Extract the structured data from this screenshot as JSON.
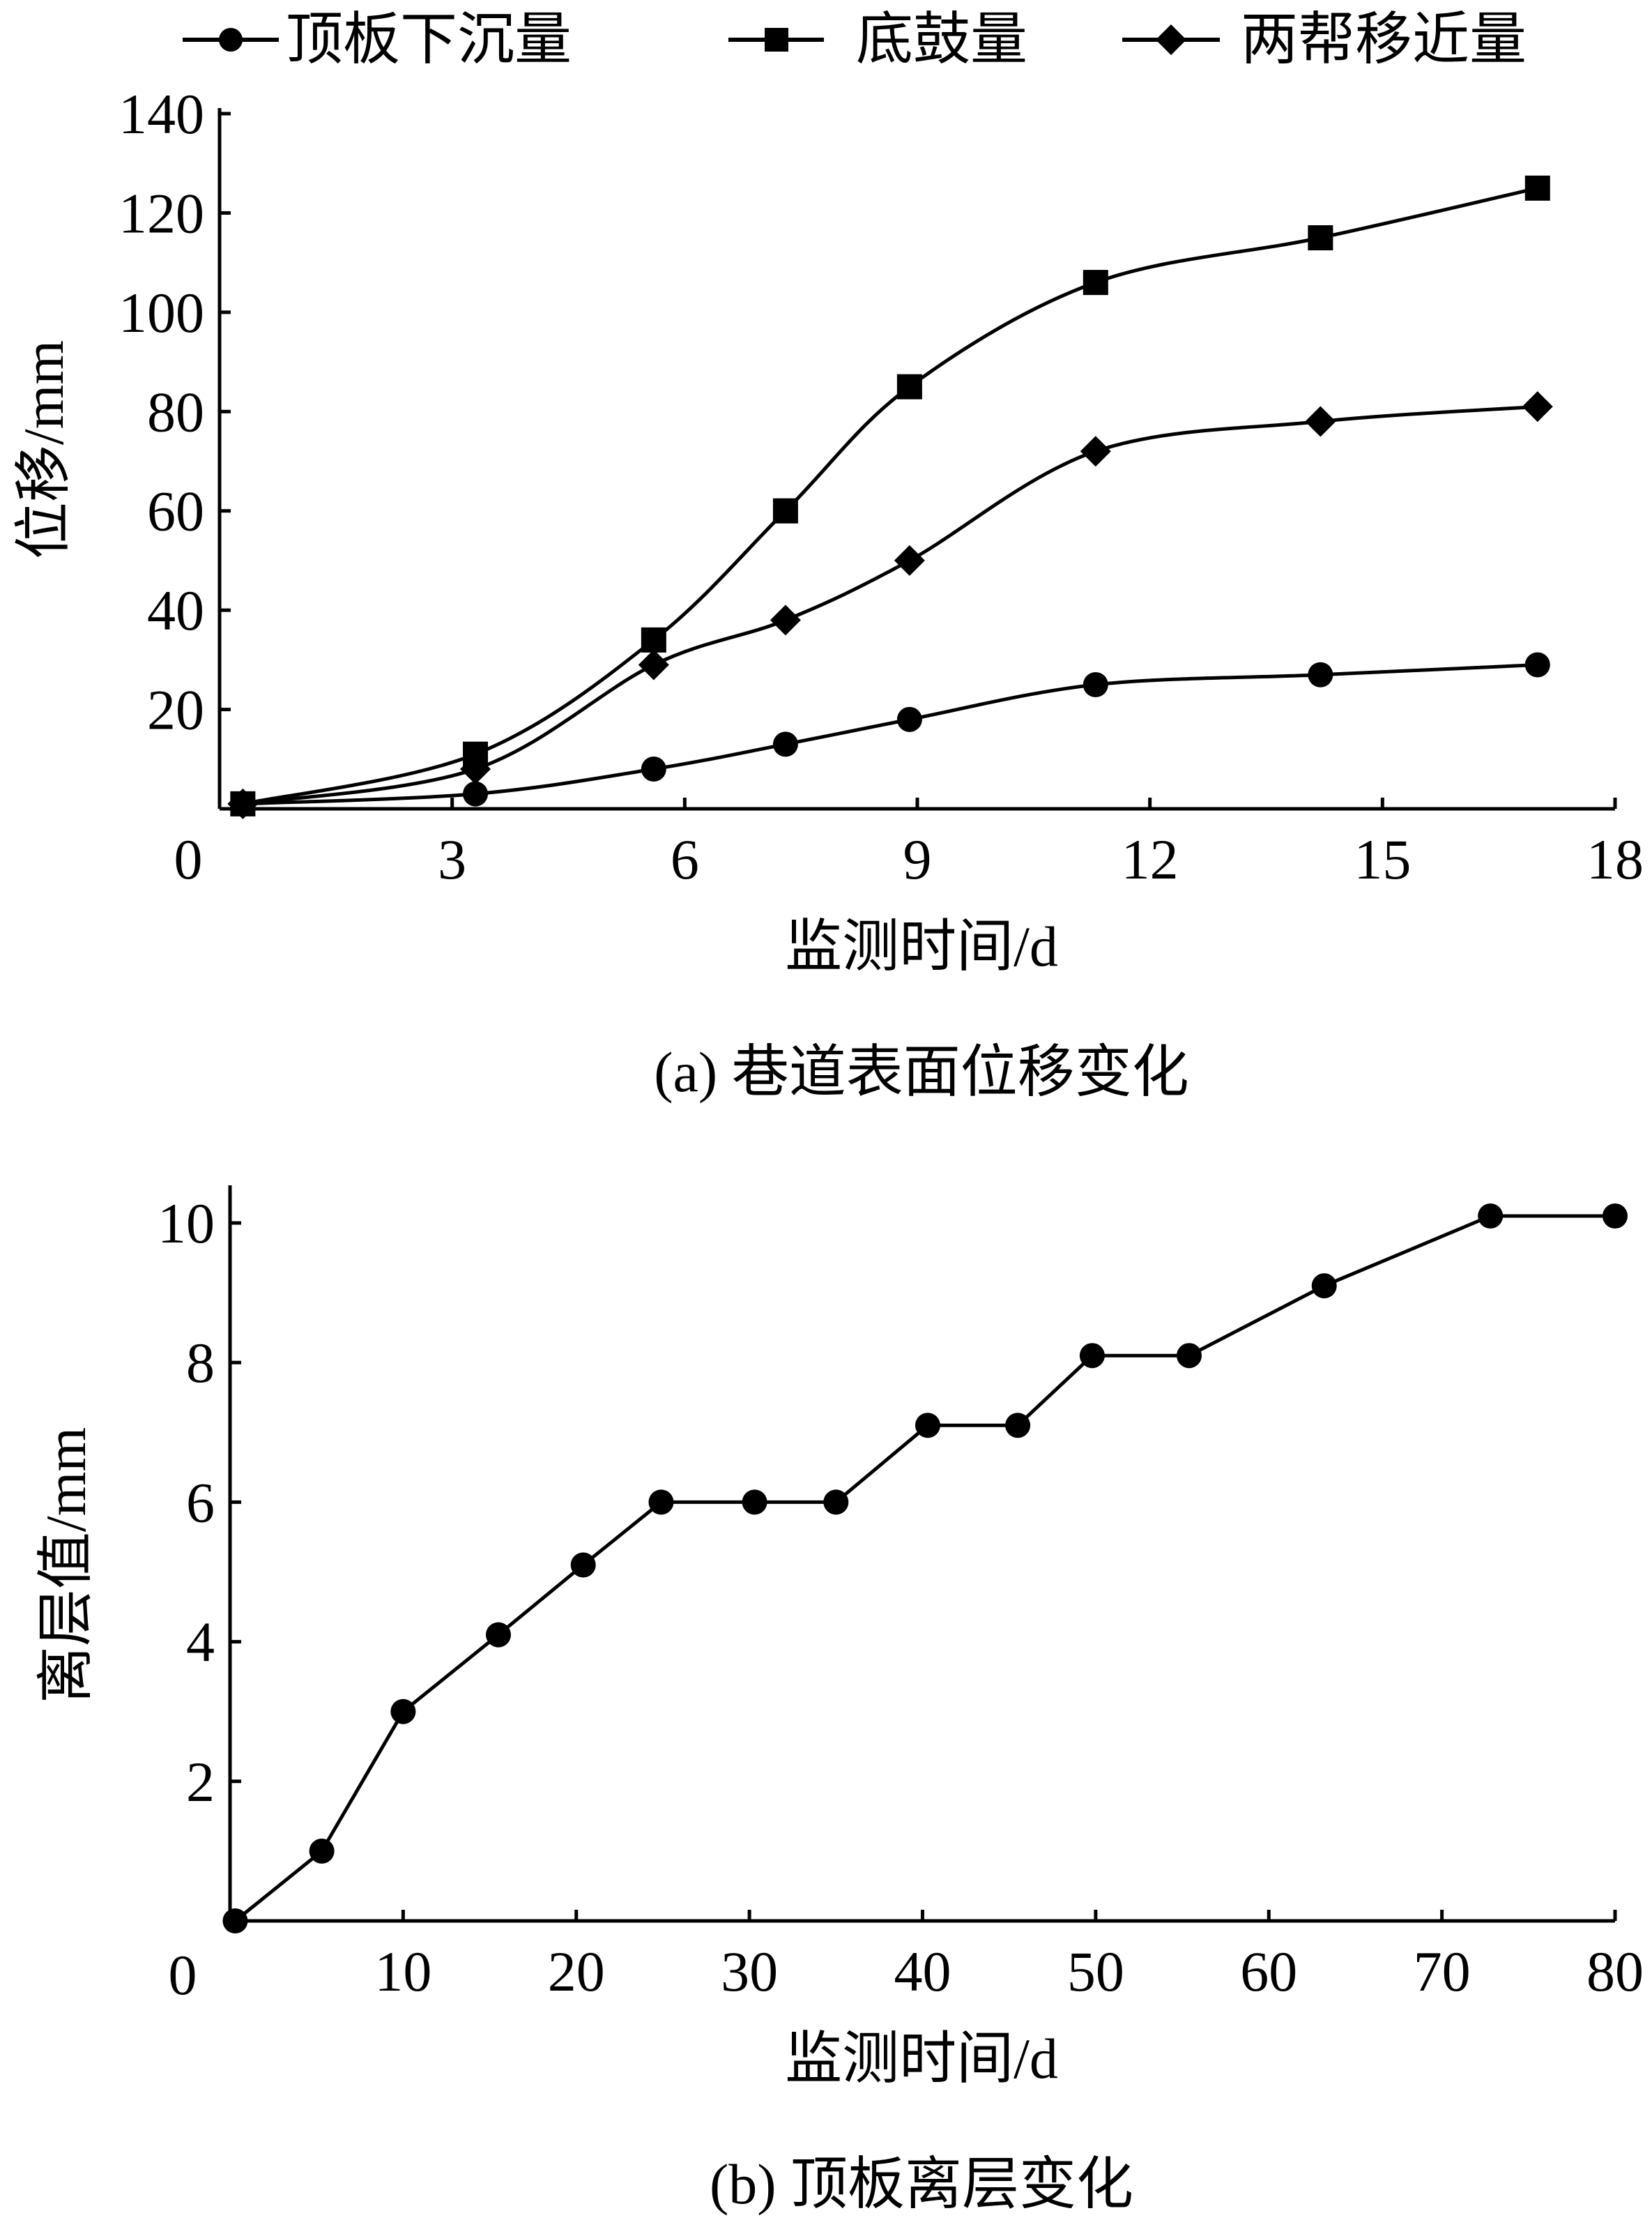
{
  "chart_data": [
    {
      "type": "line",
      "caption": "(a)  巷道表面位移变化",
      "xlabel": "监测时间/d",
      "ylabel": "位移/mm",
      "xlim": [
        0,
        18
      ],
      "ylim": [
        0,
        140
      ],
      "x_ticks": [
        0,
        3,
        6,
        9,
        12,
        15,
        18
      ],
      "y_ticks": [
        20,
        40,
        60,
        80,
        100,
        120,
        140
      ],
      "legend_position": "top",
      "grid": false,
      "series": [
        {
          "name": "顶板下沉量",
          "marker": "circle",
          "x": [
            0.3,
            3.3,
            5.6,
            7.3,
            8.9,
            11.3,
            14.2,
            17.0
          ],
          "y": [
            1,
            3,
            8,
            13,
            18,
            25,
            27,
            29
          ]
        },
        {
          "name": "底鼓量",
          "marker": "square",
          "x": [
            0.3,
            3.3,
            5.6,
            7.3,
            8.9,
            11.3,
            14.2,
            17.0
          ],
          "y": [
            1,
            11,
            34,
            60,
            85,
            106,
            115,
            125
          ]
        },
        {
          "name": "两帮移近量",
          "marker": "diamond",
          "x": [
            0.3,
            3.3,
            5.6,
            7.3,
            8.9,
            11.3,
            14.2,
            17.0
          ],
          "y": [
            1,
            8,
            29,
            38,
            50,
            72,
            78,
            81
          ]
        }
      ]
    },
    {
      "type": "line",
      "caption": "(b)  顶板离层变化",
      "xlabel": "监测时间/d",
      "ylabel": "离层值/mm",
      "xlim": [
        0,
        80
      ],
      "ylim": [
        0,
        10
      ],
      "x_ticks": [
        0,
        10,
        20,
        30,
        40,
        50,
        60,
        70,
        80
      ],
      "y_ticks": [
        2,
        4,
        6,
        8,
        10
      ],
      "grid": false,
      "series": [
        {
          "marker": "circle",
          "x": [
            0.3,
            5.3,
            10.0,
            15.5,
            20.4,
            24.9,
            30.3,
            35.0,
            40.3,
            45.5,
            49.8,
            55.4,
            63.2,
            72.8,
            80.0
          ],
          "y": [
            0,
            1.0,
            3.0,
            4.1,
            5.1,
            6.0,
            6.0,
            6.0,
            7.1,
            7.1,
            8.1,
            8.1,
            9.1,
            10.1,
            10.1
          ]
        }
      ]
    }
  ]
}
